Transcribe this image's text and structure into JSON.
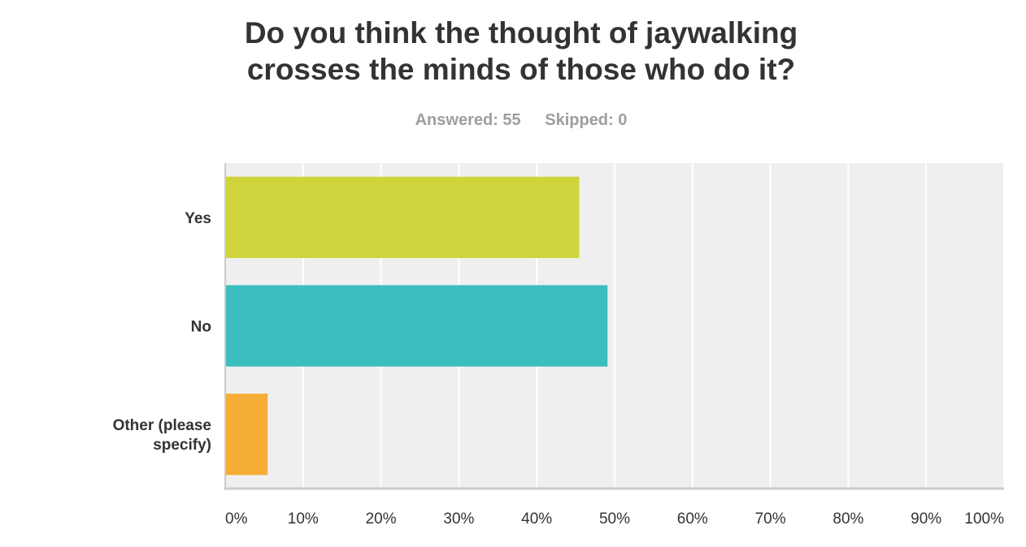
{
  "title": {
    "line1": "Do you think the thought of jaywalking",
    "line2": "crosses the minds of those who do it?"
  },
  "stats": {
    "answered": "Answered: 55",
    "skipped": "Skipped: 0"
  },
  "colors": {
    "yes": "#cfd43c",
    "no": "#3cbdbf",
    "other": "#f5ad36",
    "plot_background": "#efefef",
    "gridline": "#ffffff",
    "axis": "#cccccc"
  },
  "chart_data": {
    "type": "bar",
    "orientation": "horizontal",
    "categories": [
      [
        "Yes"
      ],
      [
        "No"
      ],
      [
        "Other (please",
        "specify)"
      ]
    ],
    "values": [
      45.45,
      49.09,
      5.45
    ],
    "xlim": [
      0,
      100
    ],
    "x_ticks": [
      "0%",
      "10%",
      "20%",
      "30%",
      "40%",
      "50%",
      "60%",
      "70%",
      "80%",
      "90%",
      "100%"
    ],
    "grid": true
  }
}
